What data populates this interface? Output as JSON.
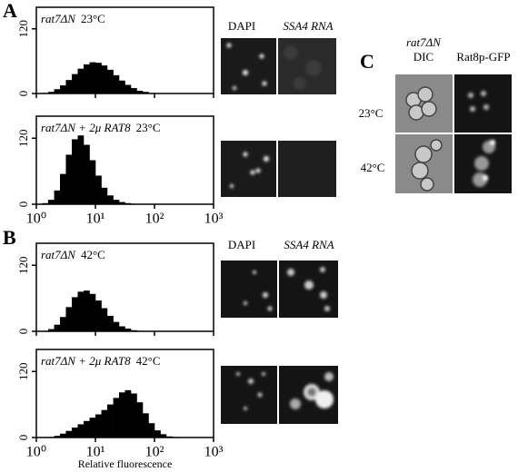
{
  "panels": {
    "A": {
      "label": "A",
      "image_columns": [
        "DAPI",
        "SSA4 RNA"
      ]
    },
    "B": {
      "label": "B",
      "image_columns": [
        "DAPI",
        "SSA4 RNA"
      ]
    },
    "C": {
      "label": "C",
      "strain": "rat7ΔN",
      "columns": [
        "DIC",
        "Rat8p-GFP"
      ],
      "rows": [
        "23°C",
        "42°C"
      ]
    }
  },
  "chart_data": [
    {
      "type": "histogram",
      "title": "rat7ΔN",
      "condition": "23°C",
      "color": "#000000",
      "log_x": true,
      "bins": [
        1,
        1.26,
        1.58,
        2,
        2.51,
        3.16,
        3.98,
        5.01,
        6.31,
        7.94,
        10,
        12.6,
        15.8,
        20,
        25.1,
        31.6,
        39.8,
        50.1,
        63.1,
        79.4,
        100,
        126,
        158,
        200,
        251,
        316,
        398,
        501,
        631,
        794,
        1000
      ],
      "values": [
        0,
        1,
        3,
        8,
        15,
        25,
        36,
        46,
        54,
        58,
        57,
        52,
        44,
        34,
        24,
        16,
        10,
        5,
        3,
        1,
        0,
        0,
        0,
        0,
        0,
        0,
        0,
        0,
        0,
        0
      ],
      "xlim": [
        1,
        1000
      ],
      "ylim": [
        0,
        160
      ],
      "yticks": [
        0,
        120
      ],
      "xticks": [
        1,
        10,
        100,
        1000
      ]
    },
    {
      "type": "histogram",
      "title": "rat7ΔN + 2μ RAT8",
      "condition": "23°C",
      "color": "#000000",
      "log_x": true,
      "bins": [
        1,
        1.26,
        1.58,
        2,
        2.51,
        3.16,
        3.98,
        5.01,
        6.31,
        7.94,
        10,
        12.6,
        15.8,
        20,
        25.1,
        31.6,
        39.8,
        50.1,
        63.1,
        79.4,
        100,
        126,
        158,
        200,
        251,
        316,
        398,
        501,
        631,
        794,
        1000
      ],
      "values": [
        0,
        2,
        8,
        25,
        55,
        90,
        118,
        125,
        108,
        80,
        52,
        30,
        16,
        8,
        4,
        2,
        1,
        0,
        0,
        0,
        0,
        0,
        0,
        0,
        0,
        0,
        0,
        0,
        0,
        0
      ],
      "xlim": [
        1,
        1000
      ],
      "ylim": [
        0,
        160
      ],
      "yticks": [
        0,
        120
      ],
      "xticks": [
        {
          "value": 1,
          "label": "10⁰"
        },
        {
          "value": 10,
          "label": "10¹"
        },
        {
          "value": 100,
          "label": "10²"
        },
        {
          "value": 1000,
          "label": "10³"
        }
      ]
    },
    {
      "type": "histogram",
      "title": "rat7ΔN",
      "condition": "42°C",
      "color": "#000000",
      "log_x": true,
      "bins": [
        1,
        1.26,
        1.58,
        2,
        2.51,
        3.16,
        3.98,
        5.01,
        6.31,
        7.94,
        10,
        12.6,
        15.8,
        20,
        25.1,
        31.6,
        39.8,
        50.1,
        63.1,
        79.4,
        100,
        126,
        158,
        200,
        251,
        316,
        398,
        501,
        631,
        794,
        1000
      ],
      "values": [
        0,
        1,
        4,
        12,
        26,
        44,
        62,
        72,
        74,
        68,
        56,
        42,
        28,
        17,
        9,
        5,
        2,
        1,
        0,
        0,
        0,
        0,
        0,
        0,
        0,
        0,
        0,
        0,
        0,
        0
      ],
      "xlim": [
        1,
        1000
      ],
      "ylim": [
        0,
        160
      ],
      "yticks": [
        0,
        120
      ],
      "xticks": [
        1,
        10,
        100,
        1000
      ]
    },
    {
      "type": "histogram",
      "title": "rat7ΔN + 2μ RAT8",
      "condition": "42°C",
      "color": "#000000",
      "log_x": true,
      "bins": [
        1,
        1.26,
        1.58,
        2,
        2.51,
        3.16,
        3.98,
        5.01,
        6.31,
        7.94,
        10,
        12.6,
        15.8,
        20,
        25.1,
        31.6,
        39.8,
        50.1,
        63.1,
        79.4,
        100,
        126,
        158,
        200,
        251,
        316,
        398,
        501,
        631,
        794,
        1000
      ],
      "values": [
        0,
        0,
        1,
        3,
        7,
        12,
        18,
        24,
        30,
        36,
        42,
        50,
        60,
        72,
        82,
        86,
        80,
        64,
        44,
        26,
        13,
        6,
        2,
        1,
        0,
        0,
        0,
        0,
        0,
        0
      ],
      "xlim": [
        1,
        1000
      ],
      "ylim": [
        0,
        160
      ],
      "yticks": [
        0,
        120
      ],
      "xticks": [
        {
          "value": 1,
          "label": "10⁰"
        },
        {
          "value": 10,
          "label": "10¹"
        },
        {
          "value": 100,
          "label": "10²"
        },
        {
          "value": 1000,
          "label": "10³"
        }
      ],
      "xlabel": "Relative fluorescence"
    }
  ]
}
